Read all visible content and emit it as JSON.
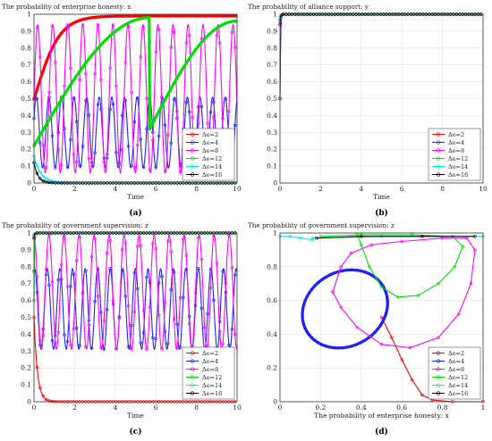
{
  "chart_data": [
    {
      "id": "a",
      "type": "line",
      "title": "The probability of enterprise honesty: x",
      "xlabel": "Time",
      "ylabel": "",
      "xlim": [
        0,
        10
      ],
      "ylim": [
        0,
        1
      ],
      "xticks": [
        "0",
        "2",
        "4",
        "6",
        "8",
        "10"
      ],
      "yticks": [
        "0",
        "0.1",
        "0.2",
        "0.3",
        "0.4",
        "0.5",
        "0.6",
        "0.7",
        "0.8",
        "0.9",
        "1"
      ],
      "grid": true,
      "legend_position": "bottom-right",
      "caption": "(a)",
      "series": [
        {
          "name": "Δe=2",
          "color": "#ff0000",
          "kind": "logistic",
          "params": {
            "y0": 0.5,
            "k": 1.6,
            "ymax": 0.99
          }
        },
        {
          "name": "Δe=4",
          "color": "#2020ff",
          "kind": "oscillation",
          "params": {
            "center": 0.3,
            "amp": 0.21,
            "period": 0.62,
            "phase": 0.4
          }
        },
        {
          "name": "Δe=8",
          "color": "#ff00ff",
          "kind": "oscillation",
          "params": {
            "center": 0.5,
            "amp": 0.44,
            "period": 0.74,
            "phase": 0.0
          }
        },
        {
          "name": "Δe=12",
          "color": "#00e000",
          "kind": "sawtooth",
          "params": {
            "segments": [
              [
                0,
                0.22,
                5.7,
                0.98
              ],
              [
                5.7,
                0.32,
                10,
                0.96
              ]
            ]
          }
        },
        {
          "name": "Δe=14",
          "color": "#00e5e5",
          "kind": "decay",
          "params": {
            "y0": 0.16,
            "rate": 3.0,
            "yend": 0.0
          }
        },
        {
          "name": "Δe=16",
          "color": "#000000",
          "kind": "decay",
          "params": {
            "y0": 0.12,
            "rate": 5.0,
            "yend": 0.0
          }
        }
      ]
    },
    {
      "id": "b",
      "type": "line",
      "title": "The probability of alliance support: y",
      "xlabel": "Time",
      "ylabel": "",
      "xlim": [
        0,
        10
      ],
      "ylim": [
        0,
        1
      ],
      "xticks": [
        "0",
        "2",
        "4",
        "6",
        "8",
        "10"
      ],
      "yticks": [
        "0",
        "0.1",
        "0.2",
        "0.3",
        "0.4",
        "0.5",
        "0.6",
        "0.7",
        "0.8",
        "0.9",
        "1"
      ],
      "grid": true,
      "legend_position": "bottom-right",
      "caption": "(b)",
      "series": [
        {
          "name": "Δe=2",
          "color": "#ff0000",
          "kind": "jump",
          "params": {
            "y0": 0.5,
            "y1": 1.0
          }
        },
        {
          "name": "Δe=4",
          "color": "#2020ff",
          "kind": "jump",
          "params": {
            "y0": 0.5,
            "y1": 1.0
          }
        },
        {
          "name": "Δe=8",
          "color": "#ff00ff",
          "kind": "jump",
          "params": {
            "y0": 0.96,
            "y1": 1.0
          }
        },
        {
          "name": "Δe=12",
          "color": "#00e000",
          "kind": "jump",
          "params": {
            "y0": 0.97,
            "y1": 1.0
          }
        },
        {
          "name": "Δe=14",
          "color": "#00e5e5",
          "kind": "jump",
          "params": {
            "y0": 0.98,
            "y1": 1.0
          }
        },
        {
          "name": "Δe=16",
          "color": "#000000",
          "kind": "jump",
          "params": {
            "y0": 0.94,
            "y1": 1.0
          }
        }
      ]
    },
    {
      "id": "c",
      "type": "line",
      "title": "The probability of government supervision: z",
      "xlabel": "Time",
      "ylabel": "",
      "xlim": [
        0,
        10
      ],
      "ylim": [
        0,
        1
      ],
      "xticks": [
        "0",
        "2",
        "4",
        "6",
        "8",
        "10"
      ],
      "yticks": [
        "0",
        "0.1",
        "0.2",
        "0.3",
        "0.4",
        "0.5",
        "0.6",
        "0.7",
        "0.8",
        "0.9",
        "1"
      ],
      "grid": true,
      "legend_position": "bottom-right",
      "caption": "(c)",
      "series": [
        {
          "name": "Δe=2",
          "color": "#ff0000",
          "kind": "decay",
          "params": {
            "y0": 0.5,
            "rate": 6.0,
            "yend": 0.0
          }
        },
        {
          "name": "Δe=4",
          "color": "#2020ff",
          "kind": "oscillation",
          "params": {
            "center": 0.55,
            "amp": 0.24,
            "period": 0.62,
            "phase": 1.2
          }
        },
        {
          "name": "Δe=8",
          "color": "#ff00ff",
          "kind": "oscillation",
          "params": {
            "center": 0.65,
            "amp": 0.34,
            "period": 0.74,
            "phase": 1.6
          }
        },
        {
          "name": "Δe=12",
          "color": "#00e000",
          "kind": "jump",
          "params": {
            "y0": 0.6,
            "y1": 1.0
          }
        },
        {
          "name": "Δe=14",
          "color": "#00e5e5",
          "kind": "jump",
          "params": {
            "y0": 0.98,
            "y1": 1.0
          }
        },
        {
          "name": "Δe=16",
          "color": "#000000",
          "kind": "jump",
          "params": {
            "y0": 0.97,
            "y1": 1.0
          }
        }
      ]
    },
    {
      "id": "d",
      "type": "line",
      "title": "The probability of government supervision: z",
      "xlabel": "The probability of enterprise honesty: x",
      "ylabel": "",
      "xlim": [
        0,
        1
      ],
      "ylim": [
        0,
        1
      ],
      "xticks": [
        "0",
        "0.2",
        "0.4",
        "0.6",
        "0.8",
        "1"
      ],
      "yticks": [
        "0",
        "0.2",
        "0.4",
        "0.6",
        "0.8",
        "1"
      ],
      "grid": true,
      "legend_position": "bottom-right",
      "caption": "(d)",
      "series": [
        {
          "name": "Δe=2",
          "color": "#ff0000",
          "kind": "phase",
          "points": [
            [
              0.5,
              0.5
            ],
            [
              0.55,
              0.38
            ],
            [
              0.6,
              0.25
            ],
            [
              0.65,
              0.13
            ],
            [
              0.7,
              0.04
            ],
            [
              0.75,
              0.01
            ],
            [
              0.85,
              0.0
            ],
            [
              1.0,
              0.0
            ]
          ]
        },
        {
          "name": "Δe=4",
          "color": "#2020ff",
          "kind": "ellipse",
          "params": {
            "cx": 0.32,
            "cy": 0.55,
            "rx": 0.2,
            "ry": 0.24,
            "tilt": -0.5
          }
        },
        {
          "name": "Δe=8",
          "color": "#ff00ff",
          "kind": "phase",
          "points": [
            [
              0.26,
              0.65
            ],
            [
              0.3,
              0.8
            ],
            [
              0.35,
              0.88
            ],
            [
              0.45,
              0.93
            ],
            [
              0.6,
              0.95
            ],
            [
              0.8,
              0.97
            ],
            [
              0.92,
              0.97
            ],
            [
              0.96,
              0.9
            ],
            [
              0.94,
              0.7
            ],
            [
              0.88,
              0.52
            ],
            [
              0.78,
              0.38
            ],
            [
              0.64,
              0.32
            ],
            [
              0.5,
              0.34
            ],
            [
              0.38,
              0.44
            ],
            [
              0.3,
              0.56
            ],
            [
              0.26,
              0.65
            ]
          ]
        },
        {
          "name": "Δe=12",
          "color": "#00e000",
          "kind": "phase",
          "points": [
            [
              0.2,
              0.98
            ],
            [
              0.4,
              0.99
            ],
            [
              0.65,
              0.99
            ],
            [
              0.85,
              0.98
            ],
            [
              0.9,
              0.92
            ],
            [
              0.86,
              0.8
            ],
            [
              0.78,
              0.7
            ],
            [
              0.68,
              0.63
            ],
            [
              0.58,
              0.62
            ],
            [
              0.5,
              0.68
            ],
            [
              0.44,
              0.8
            ],
            [
              0.4,
              0.93
            ],
            [
              0.38,
              0.99
            ]
          ]
        },
        {
          "name": "Δe=14",
          "color": "#00e5e5",
          "kind": "phase",
          "points": [
            [
              0.0,
              0.98
            ],
            [
              0.05,
              0.98
            ],
            [
              0.1,
              0.97
            ],
            [
              0.16,
              0.96
            ],
            [
              0.16,
              0.97
            ],
            [
              0.5,
              0.98
            ],
            [
              1.0,
              0.98
            ]
          ]
        },
        {
          "name": "Δe=16",
          "color": "#000000",
          "kind": "phase",
          "points": [
            [
              0.18,
              0.97
            ],
            [
              0.4,
              0.98
            ],
            [
              0.7,
              0.98
            ],
            [
              0.96,
              0.98
            ]
          ]
        }
      ]
    }
  ]
}
